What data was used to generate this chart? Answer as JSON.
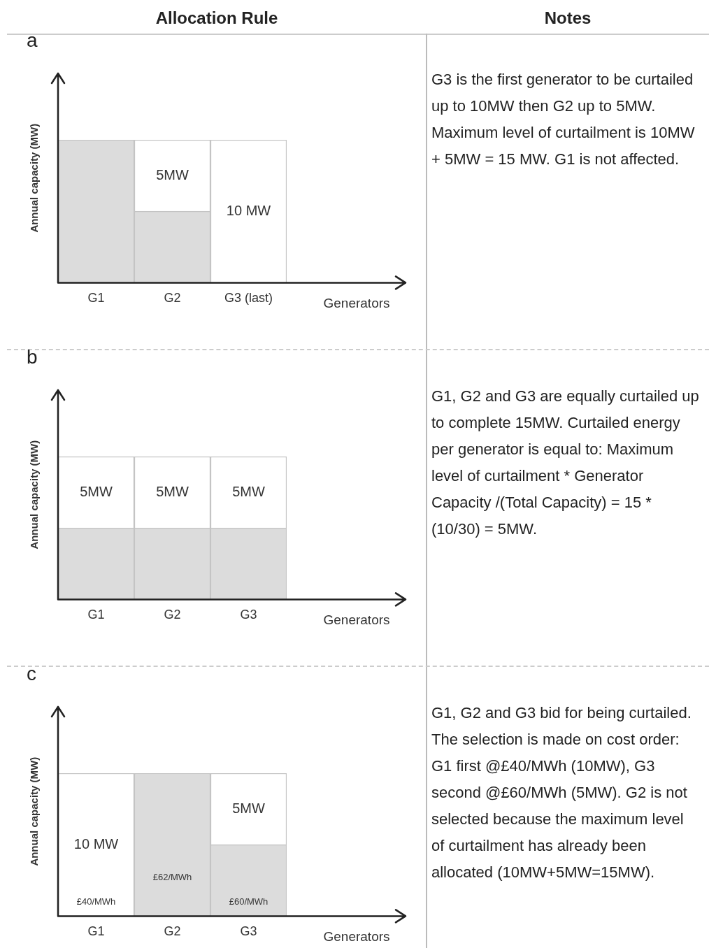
{
  "chart_data": [
    {
      "type": "bar",
      "title": "Allocation Rule",
      "subtitle": "a",
      "categories": [
        "G1",
        "G2",
        "G3 (last)"
      ],
      "xlabel": "Generators",
      "ylabel": "Annual capacity (MW)",
      "ylim": [
        0,
        10
      ],
      "tick_labels": "x",
      "stacked": true,
      "legend": false,
      "grid": false,
      "series": [
        {
          "color": "#dcdcdc",
          "values": [
            10,
            5,
            0
          ]
        },
        {
          "color": "#ffffff",
          "values": [
            0,
            5,
            10
          ],
          "value_labels": [
            null,
            "5MW",
            "10 MW"
          ]
        }
      ]
    },
    {
      "type": "other",
      "title": "Notes",
      "annotations": [
        "G3 is the first generator to be curtailed up to 10MW then G2 up to 5MW. Maximum level of curtailment is 10MW + 5MW = 15 MW. G1 is not affected."
      ]
    },
    {
      "type": "bar",
      "subtitle": "b",
      "categories": [
        "G1",
        "G2",
        "G3"
      ],
      "xlabel": "Generators",
      "ylabel": "Annual capacity (MW)",
      "ylim": [
        0,
        10
      ],
      "tick_labels": "x",
      "stacked": true,
      "legend": false,
      "grid": false,
      "series": [
        {
          "color": "#dcdcdc",
          "values": [
            5,
            5,
            5
          ]
        },
        {
          "color": "#ffffff",
          "values": [
            5,
            5,
            5
          ],
          "value_labels": [
            "5MW",
            "5MW",
            "5MW"
          ]
        }
      ]
    },
    {
      "type": "other",
      "annotations": [
        "G1, G2 and G3 are equally curtailed up to complete 15MW. Curtailed energy per generator is equal to: Maximum level of curtailment * Generator Capacity /(Total Capacity) = 15 * (10/30) = 5MW."
      ]
    },
    {
      "type": "bar",
      "subtitle": "c",
      "categories": [
        "G1",
        "G2",
        "G3"
      ],
      "xlabel": "Generators",
      "ylabel": "Annual capacity (MW)",
      "ylim": [
        0,
        10
      ],
      "tick_labels": "x",
      "stacked": true,
      "legend": false,
      "grid": false,
      "series": [
        {
          "color": "#dcdcdc",
          "values": [
            0,
            10,
            5
          ]
        },
        {
          "color": "#ffffff",
          "values": [
            10,
            0,
            5
          ],
          "value_labels": [
            "10 MW",
            null,
            "5MW"
          ]
        }
      ],
      "annotations": [
        "£40/MWh",
        "£62/MWh",
        "£60/MWh"
      ]
    },
    {
      "type": "other",
      "annotations": [
        "G1, G2 and G3 bid for being curtailed. The selection is made on cost order: G1 first @£40/MWh (10MW), G3 second @£60/MWh (5MW). G2 is not selected because the maximum level of curtailment has already been allocated (10MW+5MW=15MW)."
      ]
    }
  ]
}
